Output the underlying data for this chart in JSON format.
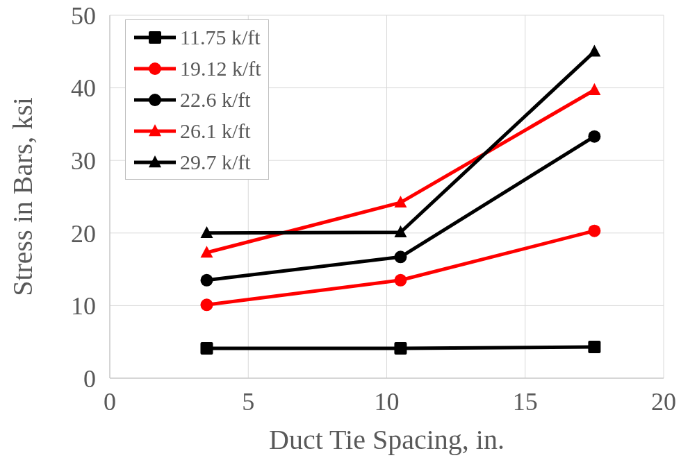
{
  "chart_data": {
    "type": "line",
    "xlabel": "Duct Tie Spacing, in.",
    "ylabel": "Stress in Bars, ksi",
    "x": [
      3.5,
      10.5,
      17.5
    ],
    "series": [
      {
        "name": "11.75 k/ft",
        "color": "#000000",
        "marker": "square",
        "values": [
          4.1,
          4.1,
          4.3
        ]
      },
      {
        "name": "19.12 k/ft",
        "color": "#ff0000",
        "marker": "circle",
        "values": [
          10.1,
          13.5,
          20.3
        ]
      },
      {
        "name": "22.6 k/ft",
        "color": "#000000",
        "marker": "circle",
        "values": [
          13.5,
          16.7,
          33.3
        ]
      },
      {
        "name": "26.1 k/ft",
        "color": "#ff0000",
        "marker": "triangle",
        "values": [
          17.3,
          24.2,
          39.7
        ]
      },
      {
        "name": "29.7 k/ft",
        "color": "#000000",
        "marker": "triangle",
        "values": [
          20.0,
          20.1,
          45.0
        ]
      }
    ],
    "xlim": [
      0,
      20
    ],
    "xticks": [
      0,
      5,
      10,
      15,
      20
    ],
    "ylim": [
      0,
      50
    ],
    "yticks": [
      0,
      10,
      20,
      30,
      40,
      50
    ],
    "grid": true,
    "legend": "top left",
    "line_style": "solid"
  }
}
